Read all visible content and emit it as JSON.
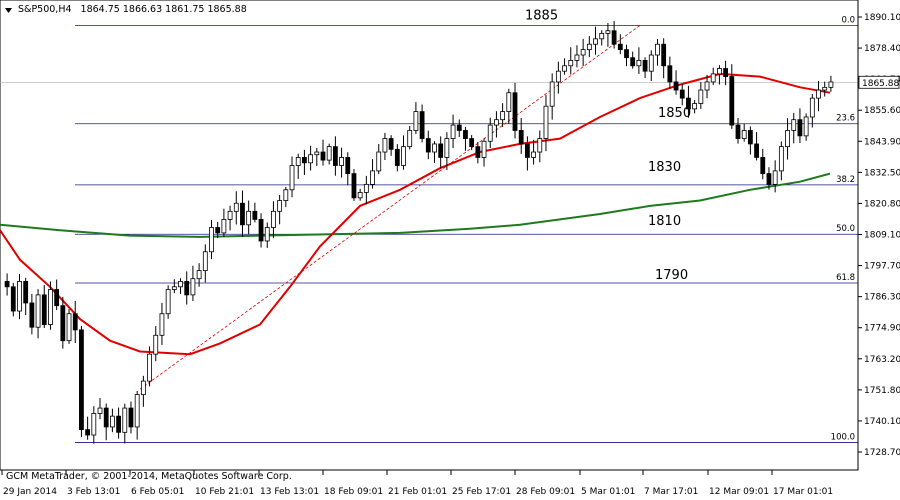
{
  "header": {
    "symbol": "S&P500,H4",
    "quote": "1864.75 1866.63 1861.75 1865.88"
  },
  "footer": {
    "copyright": "GCM MetaTrader, © 2001-2014, MetaQuotes Software Corp."
  },
  "colors": {
    "candle": "#000000",
    "ma_fast": "#e00000",
    "ma_slow": "#1e7a1e",
    "fib_line": "#1a1a8c",
    "trend_line": "#e00000",
    "price_label_bg": "#ffffff"
  },
  "chart_data": {
    "type": "candlestick",
    "instrument": "S&P500",
    "timeframe": "H4",
    "ylim": [
      1728.7,
      1893.3
    ],
    "y_ticks": [
      "1890.10",
      "1878.40",
      "1866.70",
      "1855.60",
      "1843.90",
      "1832.50",
      "1820.80",
      "1809.10",
      "1797.70",
      "1786.30",
      "1774.90",
      "1763.20",
      "1751.80",
      "1740.10",
      "1728.70"
    ],
    "x_ticks": [
      "29 Jan 2014",
      "3 Feb 13:01",
      "6 Feb 05:01",
      "10 Feb 21:01",
      "13 Feb 13:01",
      "18 Feb 09:01",
      "21 Feb 01:01",
      "25 Feb 17:01",
      "28 Feb 09:01",
      "5 Mar 01:01",
      "7 Mar 17:01",
      "12 Mar 09:01",
      "17 Mar 01:01"
    ],
    "current_price": "1865.88",
    "fib_levels": [
      {
        "pct": "0.0",
        "price": 1887.0
      },
      {
        "pct": "23.6",
        "price": 1850.5
      },
      {
        "pct": "38.2",
        "price": 1827.8
      },
      {
        "pct": "50.0",
        "price": 1809.5
      },
      {
        "pct": "61.8",
        "price": 1791.4
      },
      {
        "pct": "100.0",
        "price": 1732.2
      }
    ],
    "annotations": [
      {
        "text": "1885",
        "price": 1885
      },
      {
        "text": "1850",
        "price": 1850
      },
      {
        "text": "1830",
        "price": 1830
      },
      {
        "text": "1810",
        "price": 1810
      },
      {
        "text": "1790",
        "price": 1790
      }
    ],
    "close_path": [
      1790,
      1781,
      1792,
      1784,
      1775,
      1787,
      1776,
      1789,
      1783,
      1770,
      1780,
      1774,
      1737,
      1735,
      1743,
      1745,
      1738,
      1742,
      1736,
      1745,
      1738,
      1750,
      1755,
      1765,
      1772,
      1780,
      1789,
      1790,
      1792,
      1787,
      1793,
      1796,
      1803,
      1812,
      1810,
      1815,
      1818,
      1821,
      1813,
      1818,
      1815,
      1807,
      1812,
      1818,
      1822,
      1826,
      1835,
      1838,
      1836,
      1839,
      1840,
      1837,
      1842,
      1835,
      1838,
      1832,
      1823,
      1825,
      1828,
      1833,
      1840,
      1845,
      1841,
      1835,
      1842,
      1848,
      1855,
      1845,
      1840,
      1843,
      1838,
      1845,
      1850,
      1848,
      1845,
      1842,
      1838,
      1844,
      1850,
      1852,
      1855,
      1862,
      1848,
      1843,
      1838,
      1840,
      1845,
      1857,
      1866,
      1870,
      1872,
      1874,
      1876,
      1878,
      1880,
      1882,
      1884,
      1885,
      1880,
      1878,
      1875,
      1872,
      1874,
      1870,
      1876,
      1880,
      1872,
      1866,
      1863,
      1860,
      1856,
      1858,
      1863,
      1866,
      1869,
      1871,
      1868,
      1850,
      1845,
      1848,
      1843,
      1838,
      1832,
      1828,
      1833,
      1842,
      1848,
      1852,
      1846,
      1853,
      1860,
      1863,
      1864,
      1866
    ],
    "ma_fast": [
      [
        0,
        1811
      ],
      [
        20,
        1800
      ],
      [
        50,
        1790
      ],
      [
        80,
        1778
      ],
      [
        110,
        1770
      ],
      [
        140,
        1766
      ],
      [
        190,
        1765
      ],
      [
        220,
        1769
      ],
      [
        260,
        1776
      ],
      [
        290,
        1790
      ],
      [
        320,
        1805
      ],
      [
        360,
        1820
      ],
      [
        400,
        1826
      ],
      [
        440,
        1834
      ],
      [
        480,
        1840
      ],
      [
        520,
        1843
      ],
      [
        560,
        1845
      ],
      [
        600,
        1853
      ],
      [
        640,
        1860
      ],
      [
        680,
        1865
      ],
      [
        720,
        1869
      ],
      [
        760,
        1868
      ],
      [
        800,
        1864
      ],
      [
        830,
        1862
      ]
    ],
    "ma_slow": [
      [
        0,
        1813
      ],
      [
        60,
        1811
      ],
      [
        130,
        1809
      ],
      [
        200,
        1808.5
      ],
      [
        260,
        1809
      ],
      [
        330,
        1809.5
      ],
      [
        400,
        1810
      ],
      [
        470,
        1811.5
      ],
      [
        520,
        1813
      ],
      [
        560,
        1815
      ],
      [
        600,
        1817
      ],
      [
        650,
        1820
      ],
      [
        700,
        1822
      ],
      [
        750,
        1826
      ],
      [
        800,
        1829
      ],
      [
        830,
        1832
      ]
    ],
    "trend_line": [
      [
        140,
        1752
      ],
      [
        640,
        1887
      ]
    ]
  }
}
